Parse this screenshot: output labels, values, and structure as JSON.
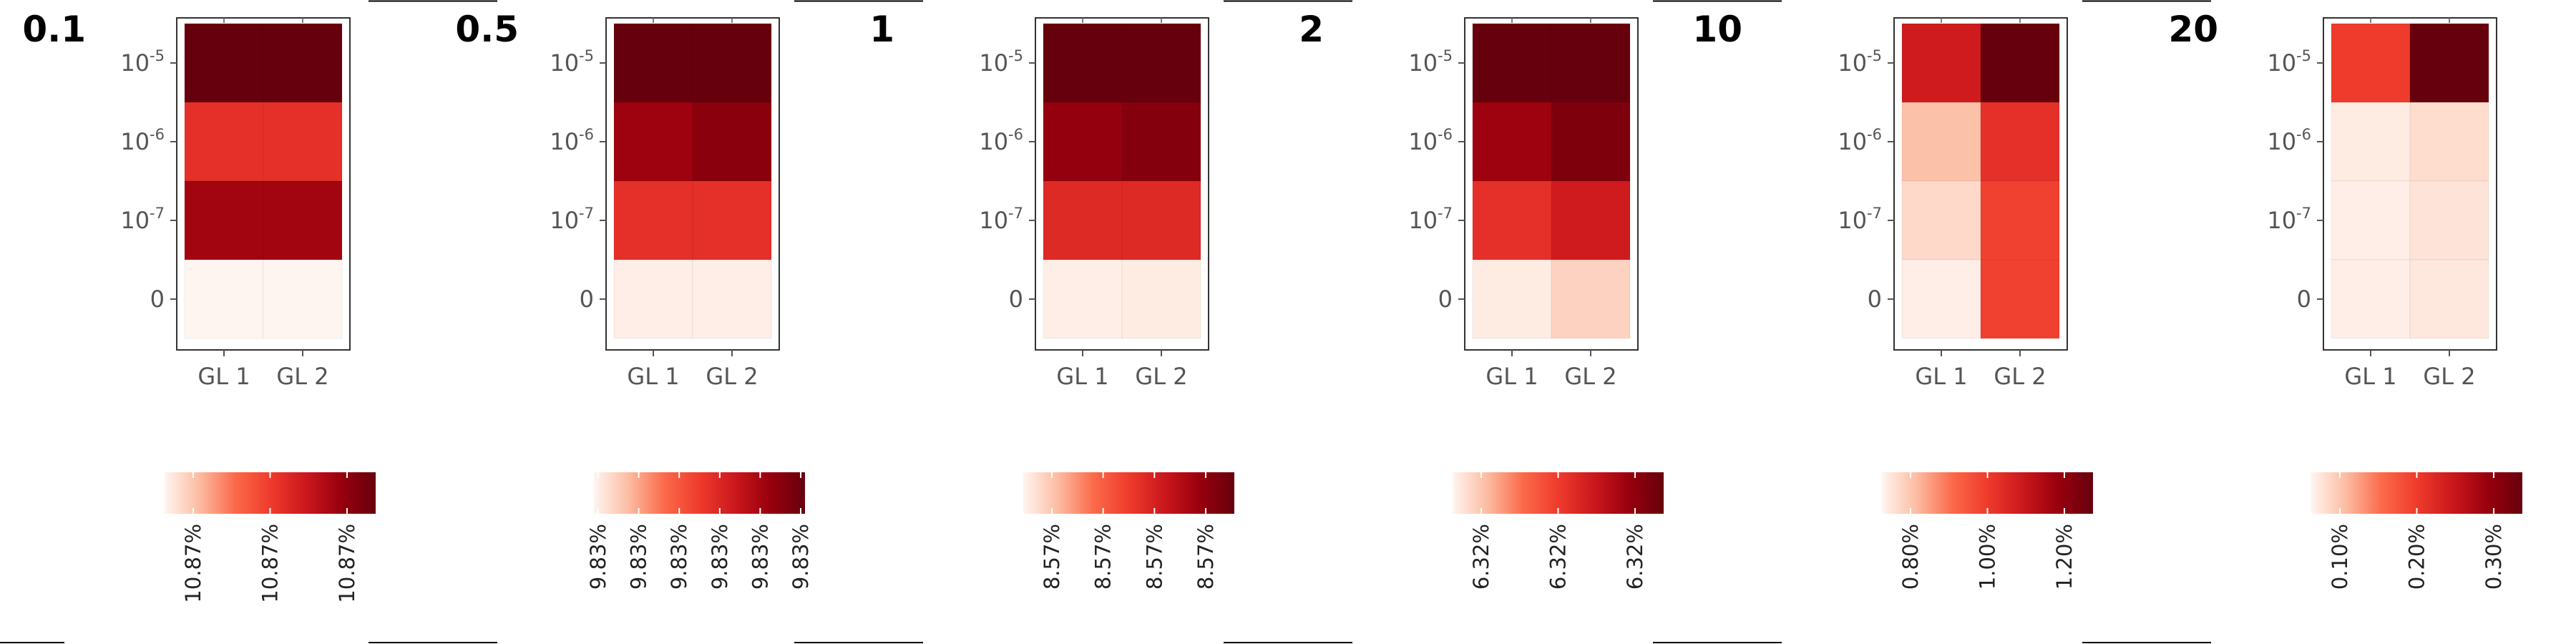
{
  "chart_data": [
    {
      "type": "heatmap",
      "title": "0.1",
      "x_categories": [
        "GL 1",
        "GL 2"
      ],
      "y_categories": [
        {
          "base": "10",
          "exp": "-5"
        },
        {
          "base": "10",
          "exp": "-6"
        },
        {
          "base": "10",
          "exp": "-7"
        },
        {
          "base": "0",
          "exp": ""
        }
      ],
      "values": [
        [
          1.0,
          1.0
        ],
        [
          0.55,
          0.55
        ],
        [
          0.8,
          0.8
        ],
        [
          0.0,
          0.0
        ]
      ],
      "colorbar": {
        "ticks": [
          "10.87%",
          "10.87%",
          "10.87%"
        ]
      }
    },
    {
      "type": "heatmap",
      "title": "0.5",
      "x_categories": [
        "GL 1",
        "GL 2"
      ],
      "y_categories": [
        {
          "base": "10",
          "exp": "-5"
        },
        {
          "base": "10",
          "exp": "-6"
        },
        {
          "base": "10",
          "exp": "-7"
        },
        {
          "base": "0",
          "exp": ""
        }
      ],
      "values": [
        [
          1.0,
          1.0
        ],
        [
          0.82,
          0.88
        ],
        [
          0.55,
          0.55
        ],
        [
          0.02,
          0.02
        ]
      ],
      "colorbar": {
        "ticks": [
          "9.83%",
          "9.83%",
          "9.83%",
          "9.83%",
          "9.83%",
          "9.83%"
        ]
      }
    },
    {
      "type": "heatmap",
      "title": "1",
      "x_categories": [
        "GL 1",
        "GL 2"
      ],
      "y_categories": [
        {
          "base": "10",
          "exp": "-5"
        },
        {
          "base": "10",
          "exp": "-6"
        },
        {
          "base": "10",
          "exp": "-7"
        },
        {
          "base": "0",
          "exp": ""
        }
      ],
      "values": [
        [
          1.0,
          1.0
        ],
        [
          0.85,
          0.9
        ],
        [
          0.58,
          0.58
        ],
        [
          0.02,
          0.03
        ]
      ],
      "colorbar": {
        "ticks": [
          "8.57%",
          "8.57%",
          "8.57%",
          "8.57%"
        ]
      }
    },
    {
      "type": "heatmap",
      "title": "2",
      "x_categories": [
        "GL 1",
        "GL 2"
      ],
      "y_categories": [
        {
          "base": "10",
          "exp": "-5"
        },
        {
          "base": "10",
          "exp": "-6"
        },
        {
          "base": "10",
          "exp": "-7"
        },
        {
          "base": "0",
          "exp": ""
        }
      ],
      "values": [
        [
          1.0,
          1.0
        ],
        [
          0.82,
          0.92
        ],
        [
          0.55,
          0.65
        ],
        [
          0.03,
          0.1
        ]
      ],
      "colorbar": {
        "ticks": [
          "6.32%",
          "6.32%",
          "6.32%"
        ]
      }
    },
    {
      "type": "heatmap",
      "title": "10",
      "x_categories": [
        "GL 1",
        "GL 2"
      ],
      "y_categories": [
        {
          "base": "10",
          "exp": "-5"
        },
        {
          "base": "10",
          "exp": "-6"
        },
        {
          "base": "10",
          "exp": "-7"
        },
        {
          "base": "0",
          "exp": ""
        }
      ],
      "values": [
        [
          0.65,
          1.0
        ],
        [
          0.15,
          0.55
        ],
        [
          0.08,
          0.48
        ],
        [
          0.02,
          0.48
        ]
      ],
      "colorbar": {
        "ticks": [
          "0.80%",
          "1.00%",
          "1.20%"
        ]
      }
    },
    {
      "type": "heatmap",
      "title": "20",
      "x_categories": [
        "GL 1",
        "GL 2"
      ],
      "y_categories": [
        {
          "base": "10",
          "exp": "-5"
        },
        {
          "base": "10",
          "exp": "-6"
        },
        {
          "base": "10",
          "exp": "-7"
        },
        {
          "base": "0",
          "exp": ""
        }
      ],
      "values": [
        [
          0.5,
          1.0
        ],
        [
          0.03,
          0.07
        ],
        [
          0.02,
          0.05
        ],
        [
          0.02,
          0.04
        ]
      ],
      "colorbar": {
        "ticks": [
          "0.10%",
          "0.20%",
          "0.30%"
        ]
      }
    }
  ],
  "colors": {
    "scale": [
      "#fff5f0",
      "#fcbba1",
      "#fb6a4a",
      "#ef3b2c",
      "#cb181d",
      "#99000d",
      "#67000d"
    ],
    "axis": "#555555",
    "frame": "#333333",
    "title": "#000000"
  }
}
